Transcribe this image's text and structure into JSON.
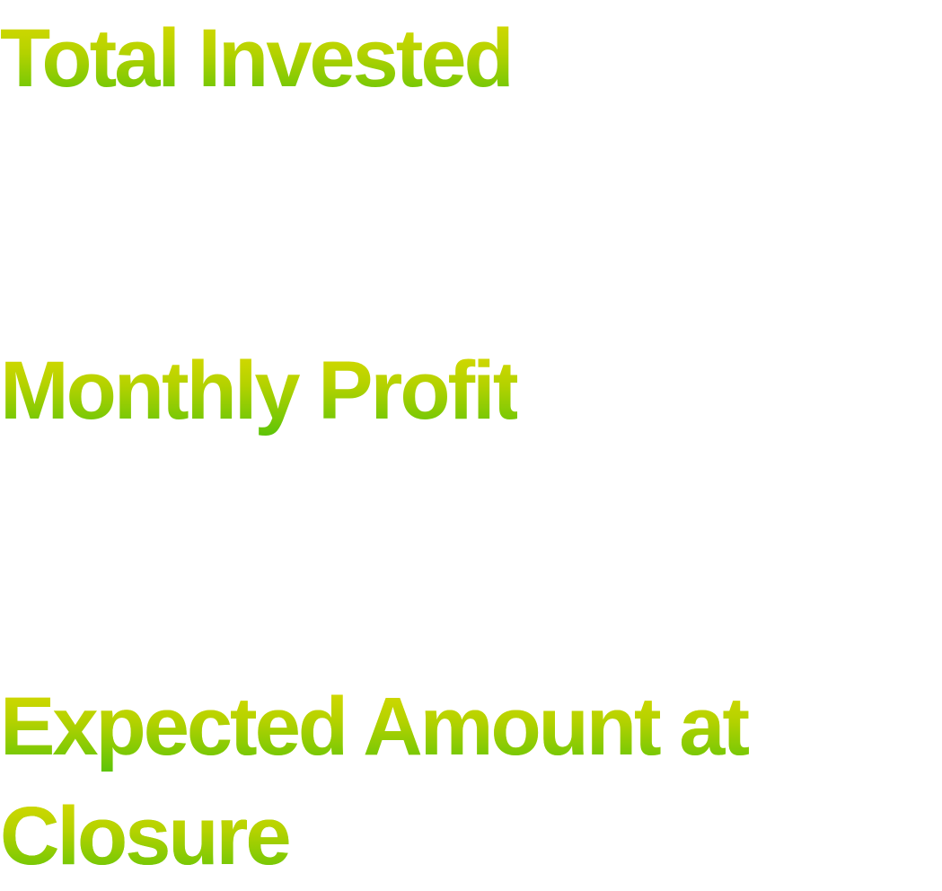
{
  "labels": {
    "total_invested": "Total Invested",
    "monthly_profit": "Monthly Profit",
    "expected_amount_line1": "Expected Amount at",
    "expected_amount_line2": "Closure"
  },
  "colors": {
    "gradient_top": "#e6dc00",
    "gradient_mid": "#b4d200",
    "gradient_bottom": "#4cc10a",
    "background": "#ffffff"
  }
}
